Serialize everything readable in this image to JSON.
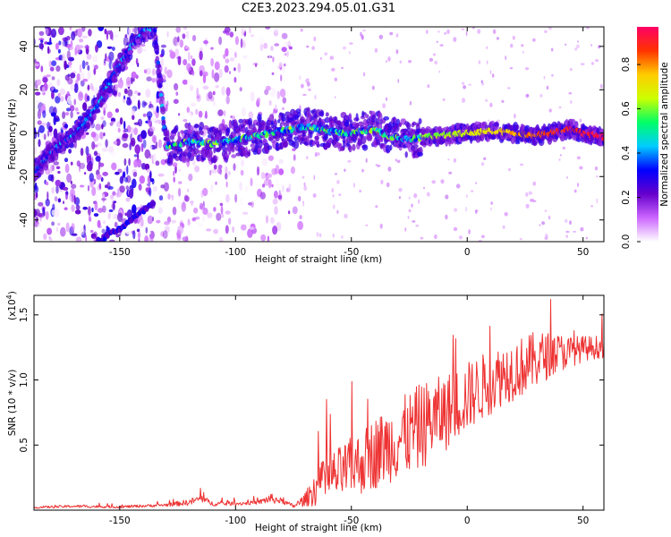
{
  "page": {
    "title": "C2E3.2023.294.05.01.G31"
  },
  "chart_data": [
    {
      "type": "heatmap",
      "title": "C2E3.2023.294.05.01.G31",
      "xlabel": "Height of straight line (km)",
      "ylabel": "Frequency (Hz)",
      "xlim": [
        -187,
        59
      ],
      "ylim": [
        -50,
        49
      ],
      "xticks": [
        -150,
        -100,
        -50,
        0,
        50
      ],
      "yticks": [
        -40,
        -20,
        0,
        20,
        40
      ],
      "xtick_labels": [
        "-150",
        "-100",
        "-50",
        "0",
        "50"
      ],
      "ytick_labels": [
        "-40",
        "-20",
        "0",
        "20",
        "40"
      ],
      "colorbar": {
        "label": "Normalized spectral amplitude",
        "range": [
          0,
          0.97
        ],
        "ticks": [
          0.0,
          0.2,
          0.4,
          0.6,
          0.8
        ],
        "tick_labels": [
          "0.0",
          "0.2",
          "0.4",
          "0.6",
          "0.8"
        ],
        "colors": [
          "#ffffff",
          "#cc66ff",
          "#6600cc",
          "#0000ff",
          "#00ccff",
          "#00ff66",
          "#ccff00",
          "#ffcc00",
          "#ff3300",
          "#ff0066"
        ]
      },
      "ridge": {
        "x": [
          -187,
          -180,
          -175,
          -170,
          -165,
          -160,
          -155,
          -150,
          -145,
          -140,
          -135,
          -130,
          -120,
          -110,
          -100,
          -90,
          -80,
          -75,
          -70,
          -60,
          -50,
          -40,
          -35,
          -30,
          -25,
          -20,
          -10,
          0,
          10,
          20,
          30,
          40,
          45,
          50,
          55,
          59
        ],
        "y": [
          -18,
          -10,
          -4,
          -2,
          5,
          12,
          22,
          32,
          40,
          47,
          49,
          -6,
          -4,
          -5,
          -3,
          -1,
          1,
          2,
          3,
          1,
          0,
          2,
          -1,
          -2,
          -3,
          -2,
          -1,
          0,
          1,
          0,
          -1,
          1,
          2,
          0,
          -1,
          -2
        ],
        "peak_amplitude": 0.97
      },
      "secondary_ridge": {
        "x": [
          -160,
          -155,
          -150,
          -145,
          -140,
          -135
        ],
        "y": [
          -50,
          -47,
          -44,
          -40,
          -36,
          -32
        ]
      },
      "grid": false
    },
    {
      "type": "line",
      "xlabel": "Height of straight line (km)",
      "ylabel": "SNR (10 * v/v)",
      "y_multiplier_label": "(x10",
      "y_multiplier_exp": "4",
      "xlim": [
        -187,
        59
      ],
      "ylim": [
        0,
        16500
      ],
      "xticks": [
        -150,
        -100,
        -50,
        0,
        50
      ],
      "yticks": [
        5000,
        10000,
        15000
      ],
      "xtick_labels": [
        "-150",
        "-100",
        "-50",
        "0",
        "50"
      ],
      "ytick_labels": [
        "0.5",
        "1.0",
        "1.5"
      ],
      "series": [
        {
          "color": "#ee3333",
          "x": [
            -187,
            -170,
            -150,
            -130,
            -120,
            -115,
            -110,
            -100,
            -90,
            -85,
            -80,
            -75,
            -70,
            -65,
            -60,
            -55,
            -50,
            -45,
            -40,
            -35,
            -30,
            -25,
            -20,
            -15,
            -10,
            -5,
            0,
            5,
            10,
            15,
            20,
            25,
            30,
            35,
            40,
            45,
            50,
            55,
            59
          ],
          "y": [
            200,
            300,
            250,
            400,
            600,
            900,
            500,
            500,
            600,
            900,
            700,
            300,
            800,
            1800,
            2400,
            2800,
            3300,
            3700,
            4400,
            4900,
            5400,
            5900,
            6400,
            7000,
            7400,
            8100,
            8700,
            9300,
            9800,
            10400,
            10800,
            11100,
            11600,
            11900,
            12100,
            12200,
            12400,
            12500,
            12600
          ],
          "noise_amplitude": [
            80,
            100,
            100,
            120,
            250,
            300,
            180,
            150,
            150,
            400,
            200,
            150,
            500,
            1500,
            1900,
            2100,
            2300,
            2500,
            2800,
            2900,
            3100,
            3200,
            3400,
            3100,
            3000,
            2800,
            2700,
            2600,
            2500,
            2400,
            2400,
            2300,
            2200,
            1800,
            1500,
            1200,
            1000,
            900,
            900
          ]
        }
      ],
      "grid": false
    }
  ]
}
